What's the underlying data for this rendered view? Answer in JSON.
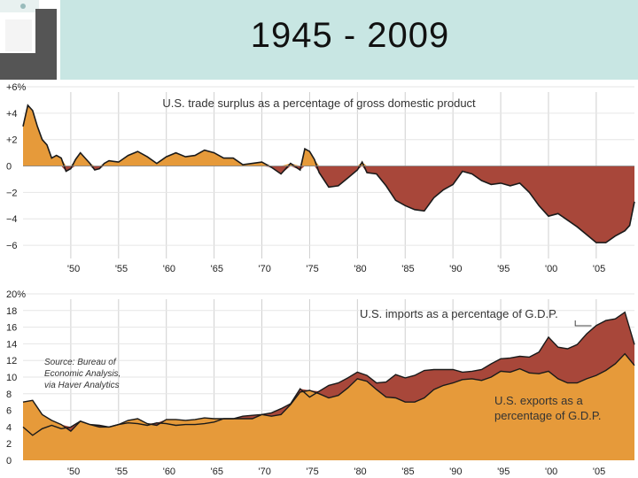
{
  "slide": {
    "title": "1945 - 2009"
  },
  "colors": {
    "surplus": "#e69a3a",
    "deficit": "#a8473a",
    "exports": "#e69a3a",
    "imports": "#a8473a",
    "line": "#1a1a1a",
    "grid": "#cfcfcf",
    "titlebar": "#c8e6e3"
  },
  "chart_data": [
    {
      "type": "area",
      "title": "U.S. trade surplus as a percentage of gross domestic product",
      "xlabel": "",
      "ylabel": "",
      "xlim": [
        1945,
        2009
      ],
      "ylim": [
        -7,
        6
      ],
      "yticks": [
        6,
        4,
        2,
        0,
        -2,
        -4,
        -6
      ],
      "ytick_labels": [
        "+6%",
        "+4",
        "+2",
        "0",
        "−2",
        "−4",
        "−6"
      ],
      "xticks": [
        1950,
        1955,
        1960,
        1965,
        1970,
        1975,
        1980,
        1985,
        1990,
        1995,
        2000,
        2005
      ],
      "xtick_labels": [
        "'50",
        "'55",
        "'60",
        "'65",
        "'70",
        "'75",
        "'80",
        "'85",
        "'90",
        "'95",
        "'00",
        "'05"
      ],
      "series": [
        {
          "name": "Trade balance (% of GDP)",
          "x": [
            1945,
            1945.5,
            1946,
            1946.5,
            1947,
            1947.5,
            1948,
            1948.5,
            1949,
            1949.5,
            1950,
            1950.5,
            1951,
            1951.5,
            1952,
            1952.5,
            1953,
            1953.5,
            1954,
            1955,
            1956,
            1957,
            1958,
            1959,
            1960,
            1961,
            1962,
            1963,
            1964,
            1965,
            1966,
            1967,
            1968,
            1969,
            1970,
            1971,
            1972,
            1973,
            1974,
            1974.5,
            1975,
            1975.5,
            1976,
            1977,
            1978,
            1979,
            1980,
            1980.5,
            1981,
            1982,
            1983,
            1984,
            1985,
            1986,
            1987,
            1988,
            1989,
            1990,
            1991,
            1992,
            1993,
            1994,
            1995,
            1996,
            1997,
            1998,
            1999,
            2000,
            2001,
            2002,
            2003,
            2004,
            2005,
            2006,
            2007,
            2008,
            2008.5,
            2009
          ],
          "values": [
            3.0,
            4.6,
            4.2,
            3.0,
            2.0,
            1.6,
            0.6,
            0.8,
            0.6,
            -0.4,
            -0.2,
            0.5,
            1.0,
            0.6,
            0.2,
            -0.3,
            -0.2,
            0.2,
            0.4,
            0.3,
            0.8,
            1.1,
            0.7,
            0.2,
            0.7,
            1.0,
            0.7,
            0.8,
            1.2,
            1.0,
            0.6,
            0.6,
            0.1,
            0.2,
            0.3,
            -0.1,
            -0.6,
            0.2,
            -0.3,
            1.3,
            1.1,
            0.5,
            -0.5,
            -1.6,
            -1.5,
            -0.9,
            -0.3,
            0.3,
            -0.5,
            -0.6,
            -1.5,
            -2.6,
            -3.0,
            -3.3,
            -3.4,
            -2.4,
            -1.8,
            -1.4,
            -0.4,
            -0.6,
            -1.1,
            -1.4,
            -1.3,
            -1.5,
            -1.3,
            -2.0,
            -3.0,
            -3.8,
            -3.6,
            -4.1,
            -4.6,
            -5.2,
            -5.8,
            -5.8,
            -5.3,
            -4.9,
            -4.5,
            -2.7
          ]
        }
      ]
    },
    {
      "type": "area",
      "title": "",
      "xlabel": "",
      "ylabel": "",
      "xlim": [
        1945,
        2009
      ],
      "ylim": [
        0,
        20
      ],
      "yticks": [
        20,
        18,
        16,
        14,
        12,
        10,
        8,
        6,
        4,
        2,
        0
      ],
      "ytick_labels": [
        "20%",
        "18",
        "16",
        "14",
        "12",
        "10",
        "8",
        "6",
        "4",
        "2",
        "0"
      ],
      "xticks": [
        1950,
        1955,
        1960,
        1965,
        1970,
        1975,
        1980,
        1985,
        1990,
        1995,
        2000,
        2005
      ],
      "xtick_labels": [
        "'50",
        "'55",
        "'60",
        "'65",
        "'70",
        "'75",
        "'80",
        "'85",
        "'90",
        "'95",
        "'00",
        "'05"
      ],
      "x": [
        1945,
        1946,
        1947,
        1948,
        1949,
        1950,
        1951,
        1952,
        1953,
        1954,
        1955,
        1956,
        1957,
        1958,
        1959,
        1960,
        1961,
        1962,
        1963,
        1964,
        1965,
        1966,
        1967,
        1968,
        1969,
        1970,
        1971,
        1972,
        1973,
        1974,
        1975,
        1976,
        1977,
        1978,
        1979,
        1980,
        1981,
        1982,
        1983,
        1984,
        1985,
        1986,
        1987,
        1988,
        1989,
        1990,
        1991,
        1992,
        1993,
        1994,
        1995,
        1996,
        1997,
        1998,
        1999,
        2000,
        2001,
        2002,
        2003,
        2004,
        2005,
        2006,
        2007,
        2008,
        2009
      ],
      "series": [
        {
          "name": "U.S. imports as a percentage of G.D.P.",
          "values": [
            4.0,
            3.0,
            3.8,
            4.2,
            3.8,
            4.0,
            4.7,
            4.3,
            4.2,
            4.0,
            4.3,
            4.5,
            4.4,
            4.2,
            4.5,
            4.4,
            4.2,
            4.3,
            4.3,
            4.4,
            4.6,
            5.0,
            5.0,
            5.3,
            5.4,
            5.5,
            5.7,
            6.2,
            6.8,
            8.6,
            7.6,
            8.3,
            9.0,
            9.3,
            9.9,
            10.6,
            10.2,
            9.3,
            9.4,
            10.3,
            9.9,
            10.2,
            10.8,
            10.9,
            10.9,
            10.9,
            10.6,
            10.7,
            10.9,
            11.6,
            12.2,
            12.3,
            12.5,
            12.4,
            13.0,
            14.8,
            13.6,
            13.4,
            13.9,
            15.2,
            16.2,
            16.8,
            17.0,
            17.8,
            13.9
          ]
        },
        {
          "name": "U.S. exports as a percentage of G.D.P.",
          "values": [
            7.0,
            7.2,
            5.5,
            4.8,
            4.3,
            3.5,
            4.7,
            4.3,
            4.0,
            4.0,
            4.3,
            4.8,
            5.0,
            4.4,
            4.2,
            4.9,
            4.9,
            4.8,
            4.9,
            5.1,
            5.0,
            5.0,
            5.0,
            5.0,
            5.0,
            5.5,
            5.3,
            5.5,
            6.7,
            8.2,
            8.4,
            8.0,
            7.5,
            7.8,
            8.7,
            9.8,
            9.5,
            8.5,
            7.6,
            7.5,
            7.0,
            7.0,
            7.5,
            8.5,
            9.0,
            9.3,
            9.7,
            9.8,
            9.6,
            10.0,
            10.7,
            10.6,
            11.0,
            10.5,
            10.4,
            10.7,
            9.8,
            9.3,
            9.3,
            9.8,
            10.2,
            10.8,
            11.6,
            12.8,
            11.4
          ]
        }
      ],
      "annotations": [
        "Source: Bureau of",
        "Economic Analysis,",
        "via Haver Analytics",
        "U.S. exports as a",
        "percentage of G.D.P."
      ]
    }
  ]
}
